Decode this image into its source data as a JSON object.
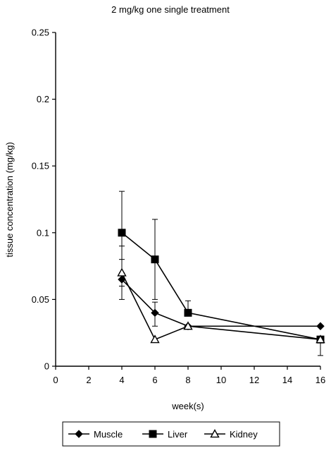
{
  "chart_data": {
    "type": "line",
    "title": "2 mg/kg one single treatment",
    "xlabel": "week(s)",
    "ylabel": "tissue concentration (mg/kg)",
    "xlim": [
      0,
      16
    ],
    "ylim": [
      0,
      0.25
    ],
    "x_ticks": [
      0,
      2,
      4,
      6,
      8,
      10,
      12,
      14,
      16
    ],
    "y_ticks": [
      0,
      0.05,
      0.1,
      0.15,
      0.2,
      0.25
    ],
    "y_tick_labels": [
      "0",
      "0.05",
      "0.1",
      "0.15",
      "0.2",
      "0.25"
    ],
    "grid": false,
    "legend_position": "bottom",
    "series": [
      {
        "name": "Muscle",
        "marker": "diamond",
        "x": [
          4,
          6,
          8,
          16
        ],
        "values": [
          0.065,
          0.04,
          0.03,
          0.03
        ],
        "error_upper": [
          0.08,
          0.048,
          null,
          null
        ],
        "error_lower": [
          0.05,
          0.03,
          null,
          null
        ]
      },
      {
        "name": "Liver",
        "marker": "square",
        "x": [
          4,
          6,
          8,
          16
        ],
        "values": [
          0.1,
          0.08,
          0.04,
          0.02
        ],
        "error_upper": [
          0.131,
          0.11,
          0.049,
          null
        ],
        "error_lower": [
          0.07,
          0.05,
          null,
          0.008
        ]
      },
      {
        "name": "Kidney",
        "marker": "triangle-open",
        "x": [
          4,
          6,
          8,
          16
        ],
        "values": [
          0.07,
          0.02,
          0.03,
          0.02
        ],
        "error_upper": [
          0.09,
          null,
          null,
          null
        ],
        "error_lower": [
          0.06,
          null,
          null,
          null
        ]
      }
    ]
  }
}
